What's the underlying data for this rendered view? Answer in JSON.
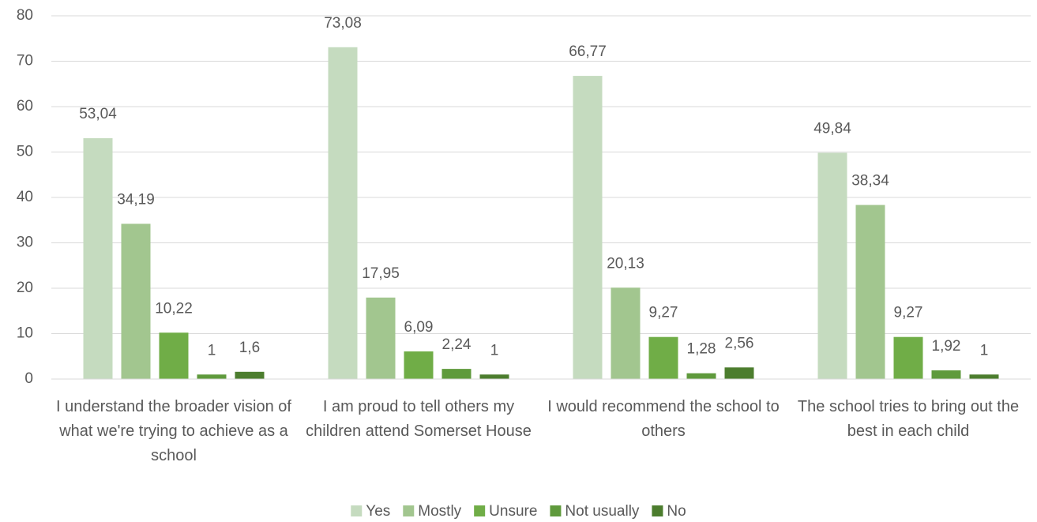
{
  "chart_data": {
    "type": "bar",
    "categories": [
      "I understand the broader vision of what we're trying to achieve as a school",
      "I am proud to tell others my children attend Somerset House",
      "I would recommend the school to others",
      "The school tries to bring out the best in each child"
    ],
    "series": [
      {
        "name": "Yes",
        "color": "#c5dbbf",
        "values": [
          53.04,
          73.08,
          66.77,
          49.84
        ],
        "value_labels": [
          "53,04",
          "73,08",
          "66,77",
          "49,84"
        ]
      },
      {
        "name": "Mostly",
        "color": "#a2c68f",
        "values": [
          34.19,
          17.95,
          20.13,
          38.34
        ],
        "value_labels": [
          "34,19",
          "17,95",
          "20,13",
          "38,34"
        ]
      },
      {
        "name": "Unsure",
        "color": "#70ad47",
        "values": [
          10.22,
          6.09,
          9.27,
          9.27
        ],
        "value_labels": [
          "10,22",
          "6,09",
          "9,27",
          "9,27"
        ]
      },
      {
        "name": "Not usually",
        "color": "#5f9a3c",
        "values": [
          1,
          2.24,
          1.28,
          1.92
        ],
        "value_labels": [
          "1",
          "2,24",
          "1,28",
          "1,92"
        ]
      },
      {
        "name": "No",
        "color": "#4c7d2e",
        "values": [
          1.6,
          1,
          2.56,
          1
        ],
        "value_labels": [
          "1,6",
          "1",
          "2,56",
          "1"
        ]
      }
    ],
    "ylim": [
      0,
      80
    ],
    "yticks": [
      0,
      10,
      20,
      30,
      40,
      50,
      60,
      70,
      80
    ],
    "grid": true,
    "legend": "bottom"
  }
}
